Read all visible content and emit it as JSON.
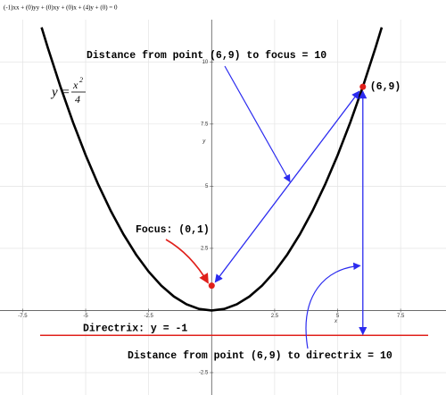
{
  "chart_data": {
    "type": "line",
    "formula": "(-1)xx + (0)yy + (0)xy + (0)x + (4)y + (0) = 0",
    "equation": {
      "lhs": "y =",
      "numerator": "x",
      "exponent": "2",
      "denominator": "4"
    },
    "x": [
      -6.75,
      -6.5,
      -6,
      -5.5,
      -5,
      -4.5,
      -4,
      -3.5,
      -3,
      -2.5,
      -2,
      -1.5,
      -1,
      -0.5,
      0,
      0.5,
      1,
      1.5,
      2,
      2.5,
      3,
      3.5,
      4,
      4.5,
      5,
      5.5,
      6,
      6.5,
      6.75
    ],
    "values": [
      11.390625,
      10.5625,
      9,
      7.5625,
      6.25,
      5.0625,
      4,
      3.0625,
      2.25,
      1.5625,
      1,
      0.5625,
      0.25,
      0.0625,
      0,
      0.0625,
      0.25,
      0.5625,
      1,
      1.5625,
      2.25,
      3.0625,
      4,
      5.0625,
      6.25,
      7.5625,
      9,
      10.5625,
      11.390625
    ],
    "color": "#000000",
    "xlim": [
      -8.4,
      9.3
    ],
    "ylim": [
      -3.4,
      11.7
    ],
    "xticks": [
      -7.5,
      -5,
      -2.5,
      2.5,
      5,
      7.5
    ],
    "yticks": [
      -2.5,
      2.5,
      5,
      7.5,
      10
    ],
    "xlabel": "x",
    "ylabel": "y",
    "grid": true,
    "points": [
      {
        "x": 0,
        "y": 1,
        "label": "Focus: (0,1)",
        "color": "#e0201b"
      },
      {
        "x": 6,
        "y": 9,
        "label": "(6,9)",
        "color": "#e0201b"
      }
    ],
    "directrix": {
      "y": -1,
      "label": "Directrix: y = -1",
      "color": "#e0201b"
    },
    "distances": [
      {
        "label": "Distance from point (6,9) to focus = 10",
        "color": "#2b2bef"
      },
      {
        "label": "Distance from point (6,9) to directrix = 10",
        "color": "#2b2bef"
      }
    ]
  }
}
